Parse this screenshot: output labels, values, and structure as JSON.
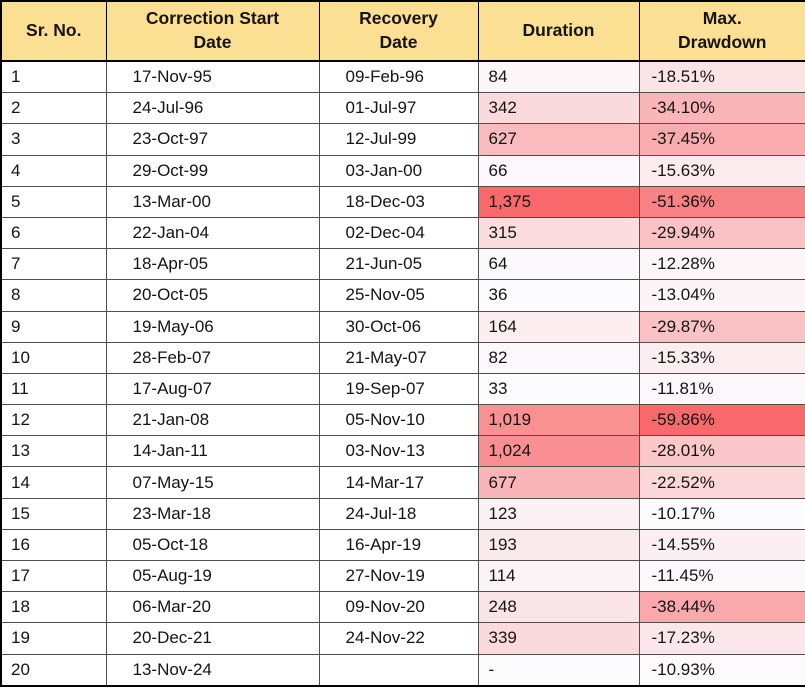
{
  "chart_data": {
    "type": "table",
    "columns": [
      "Sr. No.",
      "Correction Start Date",
      "Recovery Date",
      "Duration",
      "Max. Drawdown"
    ],
    "rows": [
      [
        "1",
        "17-Nov-95",
        "09-Feb-96",
        "84",
        "-18.51%"
      ],
      [
        "2",
        "24-Jul-96",
        "01-Jul-97",
        "342",
        "-34.10%"
      ],
      [
        "3",
        "23-Oct-97",
        "12-Jul-99",
        "627",
        "-37.45%"
      ],
      [
        "4",
        "29-Oct-99",
        "03-Jan-00",
        "66",
        "-15.63%"
      ],
      [
        "5",
        "13-Mar-00",
        "18-Dec-03",
        "1,375",
        "-51.36%"
      ],
      [
        "6",
        "22-Jan-04",
        "02-Dec-04",
        "315",
        "-29.94%"
      ],
      [
        "7",
        "18-Apr-05",
        "21-Jun-05",
        "64",
        "-12.28%"
      ],
      [
        "8",
        "20-Oct-05",
        "25-Nov-05",
        "36",
        "-13.04%"
      ],
      [
        "9",
        "19-May-06",
        "30-Oct-06",
        "164",
        "-29.87%"
      ],
      [
        "10",
        "28-Feb-07",
        "21-May-07",
        "82",
        "-15.33%"
      ],
      [
        "11",
        "17-Aug-07",
        "19-Sep-07",
        "33",
        "-11.81%"
      ],
      [
        "12",
        "21-Jan-08",
        "05-Nov-10",
        "1,019",
        "-59.86%"
      ],
      [
        "13",
        "14-Jan-11",
        "03-Nov-13",
        "1,024",
        "-28.01%"
      ],
      [
        "14",
        "07-May-15",
        "14-Mar-17",
        "677",
        "-22.52%"
      ],
      [
        "15",
        "23-Mar-18",
        "24-Jul-18",
        "123",
        "-10.17%"
      ],
      [
        "16",
        "05-Oct-18",
        "16-Apr-19",
        "193",
        "-14.55%"
      ],
      [
        "17",
        "05-Aug-19",
        "27-Nov-19",
        "114",
        "-11.45%"
      ],
      [
        "18",
        "06-Mar-20",
        "09-Nov-20",
        "248",
        "-38.44%"
      ],
      [
        "19",
        "20-Dec-21",
        "24-Nov-22",
        "339",
        "-17.23%"
      ],
      [
        "20",
        "13-Nov-24",
        "",
        "-",
        "-10.93%"
      ]
    ],
    "duration_days": [
      84,
      342,
      627,
      66,
      1375,
      315,
      64,
      36,
      164,
      82,
      33,
      1019,
      1024,
      677,
      123,
      193,
      114,
      248,
      339,
      null
    ],
    "max_drawdown_pct": [
      -18.51,
      -34.1,
      -37.45,
      -15.63,
      -51.36,
      -29.94,
      -12.28,
      -13.04,
      -29.87,
      -15.33,
      -11.81,
      -59.86,
      -28.01,
      -22.52,
      -10.17,
      -14.55,
      -11.45,
      -38.44,
      -17.23,
      -10.93
    ],
    "conditional_formatting": {
      "scale_min_color": "#FCFCFF",
      "scale_max_color": "#F8696B",
      "duration_cell_colors": [
        "#FCF6F9",
        "#FBDADD",
        "#FABBBE",
        "#FCF8FB",
        "#F8696B",
        "#FBDDE0",
        "#FCF9FC",
        "#FCFCFF",
        "#FCEEF1",
        "#FCF7FA",
        "#FCFCFF",
        "#F99092",
        "#F98F92",
        "#FAB5B8",
        "#FCF2F5",
        "#FBEAED",
        "#FCF3F6",
        "#FBE4E7",
        "#FBDADD",
        "#FCFCFF"
      ],
      "drawdown_cell_colors": [
        "#FBE3E6",
        "#FAB5B8",
        "#FAABAE",
        "#FCECEF",
        "#F98284",
        "#FAC2C4",
        "#FCF6F9",
        "#FCF4F6",
        "#FAC2C4",
        "#FCEDF0",
        "#FCF7FA",
        "#F8696B",
        "#FAC7CA",
        "#FBD7DA",
        "#FCFCFF",
        "#FCEFF2",
        "#FCF8FB",
        "#FAA8AB",
        "#FBE7EA",
        "#FCFAFD"
      ]
    }
  },
  "style": {
    "header_bg": "#FBDF93",
    "outer_border": "#000000",
    "inner_border": "#4F4F4F",
    "text_color": "#141414"
  }
}
